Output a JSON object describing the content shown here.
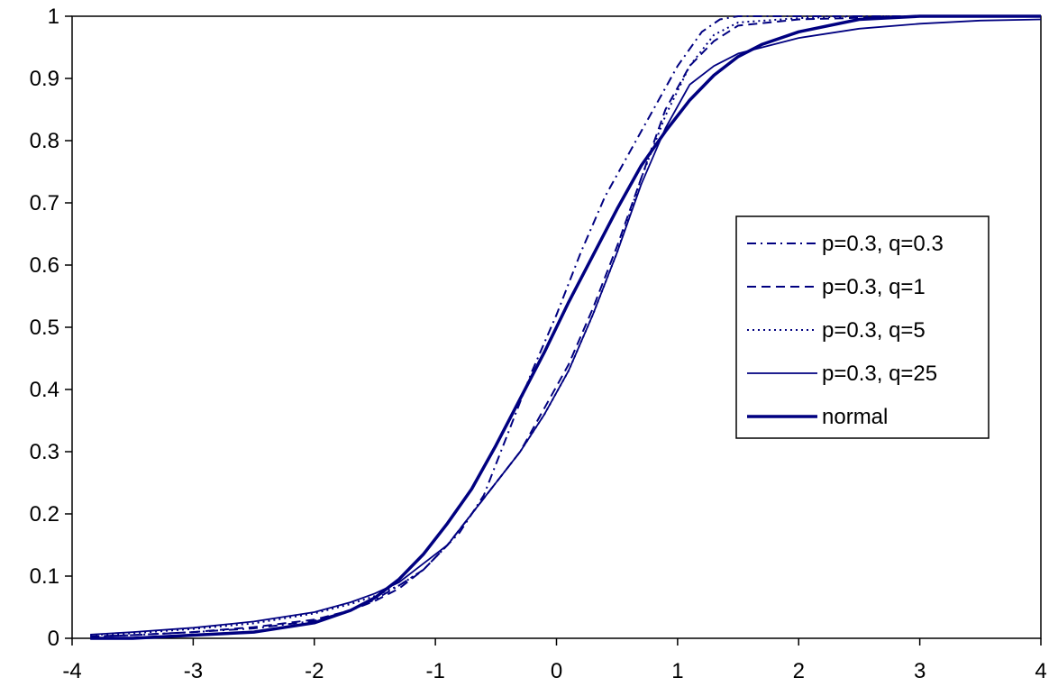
{
  "chart_data": {
    "type": "line",
    "title": "",
    "xlabel": "",
    "ylabel": "",
    "xlim": [
      -4,
      4
    ],
    "ylim": [
      0,
      1
    ],
    "xticks": [
      "-4",
      "-3",
      "-2",
      "-1",
      "0",
      "1",
      "2",
      "3",
      "4"
    ],
    "yticks": [
      "0",
      "0.1",
      "0.2",
      "0.3",
      "0.4",
      "0.5",
      "0.6",
      "0.7",
      "0.8",
      "0.9",
      "1"
    ],
    "grid": false,
    "legend_position": "right",
    "line_color": "#000080",
    "series": [
      {
        "name": "p=0.3, q=0.3",
        "style": "dashdot",
        "points": [
          [
            -3.85,
            0.003
          ],
          [
            -3.5,
            0.005
          ],
          [
            -3,
            0.01
          ],
          [
            -2.5,
            0.016
          ],
          [
            -2,
            0.028
          ],
          [
            -1.7,
            0.045
          ],
          [
            -1.5,
            0.062
          ],
          [
            -1.3,
            0.085
          ],
          [
            -1.1,
            0.11
          ],
          [
            -1,
            0.13
          ],
          [
            -0.8,
            0.17
          ],
          [
            -0.6,
            0.23
          ],
          [
            -0.4,
            0.33
          ],
          [
            -0.2,
            0.43
          ],
          [
            0,
            0.52
          ],
          [
            0.2,
            0.62
          ],
          [
            0.4,
            0.71
          ],
          [
            0.6,
            0.78
          ],
          [
            0.8,
            0.85
          ],
          [
            1,
            0.92
          ],
          [
            1.2,
            0.975
          ],
          [
            1.35,
            0.995
          ],
          [
            1.5,
            1.0
          ],
          [
            4,
            1.0
          ]
        ]
      },
      {
        "name": "p=0.3, q=1",
        "style": "dash",
        "points": [
          [
            -3.85,
            0.003
          ],
          [
            -3.5,
            0.005
          ],
          [
            -3,
            0.01
          ],
          [
            -2.5,
            0.018
          ],
          [
            -2,
            0.03
          ],
          [
            -1.7,
            0.045
          ],
          [
            -1.5,
            0.06
          ],
          [
            -1.3,
            0.08
          ],
          [
            -1.1,
            0.11
          ],
          [
            -0.9,
            0.15
          ],
          [
            -0.7,
            0.2
          ],
          [
            -0.5,
            0.25
          ],
          [
            -0.3,
            0.3
          ],
          [
            -0.1,
            0.37
          ],
          [
            0.1,
            0.44
          ],
          [
            0.3,
            0.53
          ],
          [
            0.5,
            0.63
          ],
          [
            0.7,
            0.74
          ],
          [
            0.9,
            0.85
          ],
          [
            1.1,
            0.92
          ],
          [
            1.3,
            0.96
          ],
          [
            1.5,
            0.985
          ],
          [
            2,
            0.995
          ],
          [
            3,
            1.0
          ],
          [
            4,
            1.0
          ]
        ]
      },
      {
        "name": "p=0.3, q=5",
        "style": "dot",
        "points": [
          [
            -3.85,
            0.005
          ],
          [
            -3.5,
            0.008
          ],
          [
            -3,
            0.015
          ],
          [
            -2.5,
            0.024
          ],
          [
            -2,
            0.04
          ],
          [
            -1.7,
            0.055
          ],
          [
            -1.5,
            0.068
          ],
          [
            -1.3,
            0.085
          ],
          [
            -1.1,
            0.11
          ],
          [
            -0.9,
            0.15
          ],
          [
            -0.7,
            0.2
          ],
          [
            -0.5,
            0.25
          ],
          [
            -0.3,
            0.3
          ],
          [
            -0.1,
            0.36
          ],
          [
            0.1,
            0.43
          ],
          [
            0.3,
            0.52
          ],
          [
            0.5,
            0.62
          ],
          [
            0.7,
            0.74
          ],
          [
            0.9,
            0.84
          ],
          [
            1.1,
            0.92
          ],
          [
            1.3,
            0.97
          ],
          [
            1.5,
            0.99
          ],
          [
            2,
            0.997
          ],
          [
            2.5,
            1.0
          ],
          [
            4,
            1.0
          ]
        ]
      },
      {
        "name": "p=0.3, q=25",
        "style": "solid-thin",
        "points": [
          [
            -3.85,
            0.006
          ],
          [
            -3.5,
            0.01
          ],
          [
            -3,
            0.017
          ],
          [
            -2.5,
            0.027
          ],
          [
            -2,
            0.042
          ],
          [
            -1.7,
            0.058
          ],
          [
            -1.5,
            0.072
          ],
          [
            -1.3,
            0.09
          ],
          [
            -1.1,
            0.12
          ],
          [
            -0.9,
            0.15
          ],
          [
            -0.7,
            0.2
          ],
          [
            -0.5,
            0.25
          ],
          [
            -0.3,
            0.3
          ],
          [
            -0.1,
            0.36
          ],
          [
            0.1,
            0.43
          ],
          [
            0.3,
            0.52
          ],
          [
            0.5,
            0.62
          ],
          [
            0.7,
            0.73
          ],
          [
            0.9,
            0.82
          ],
          [
            1.1,
            0.89
          ],
          [
            1.3,
            0.92
          ],
          [
            1.5,
            0.94
          ],
          [
            2,
            0.965
          ],
          [
            2.5,
            0.98
          ],
          [
            3,
            0.988
          ],
          [
            3.5,
            0.993
          ],
          [
            4,
            0.995
          ]
        ]
      },
      {
        "name": "normal",
        "style": "solid-thick",
        "points": [
          [
            -3.85,
            0.0
          ],
          [
            -3.5,
            0.0
          ],
          [
            -3,
            0.005
          ],
          [
            -2.5,
            0.01
          ],
          [
            -2,
            0.025
          ],
          [
            -1.7,
            0.045
          ],
          [
            -1.5,
            0.065
          ],
          [
            -1.3,
            0.095
          ],
          [
            -1.1,
            0.135
          ],
          [
            -0.9,
            0.185
          ],
          [
            -0.7,
            0.24
          ],
          [
            -0.5,
            0.31
          ],
          [
            -0.3,
            0.385
          ],
          [
            -0.1,
            0.46
          ],
          [
            0,
            0.5
          ],
          [
            0.1,
            0.54
          ],
          [
            0.3,
            0.615
          ],
          [
            0.5,
            0.69
          ],
          [
            0.7,
            0.76
          ],
          [
            0.9,
            0.815
          ],
          [
            1.1,
            0.865
          ],
          [
            1.3,
            0.905
          ],
          [
            1.5,
            0.935
          ],
          [
            1.7,
            0.955
          ],
          [
            2,
            0.975
          ],
          [
            2.5,
            0.995
          ],
          [
            3,
            1.0
          ],
          [
            4,
            1.0
          ]
        ]
      }
    ]
  }
}
